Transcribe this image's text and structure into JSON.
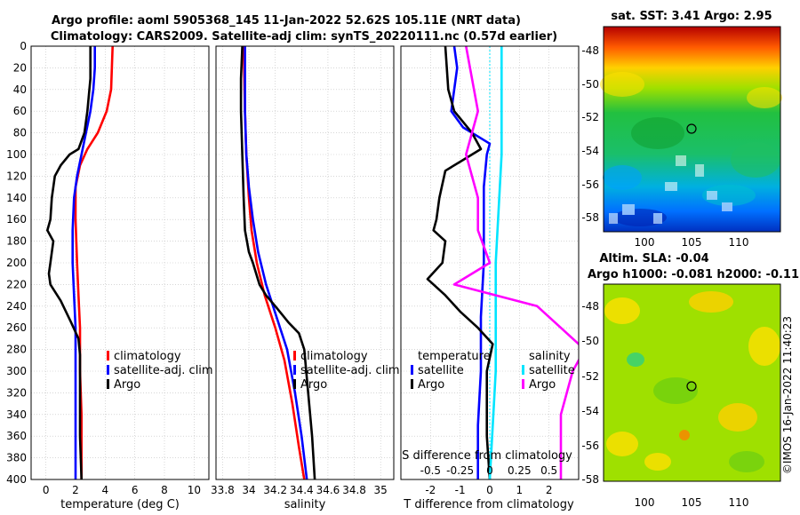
{
  "title_line1": "Argo profile: aoml 5905368_145 11-Jan-2022 52.62S 105.11E (NRT data)",
  "title_line2": "Climatology: CARS2009. Satellite-adj clim: synTS_20220111.nc (0.57d earlier)",
  "watermark": "©IMOS 16-Jan-2022 11:40:23",
  "colors": {
    "climatology": "#ff0000",
    "satellite": "#0000ff",
    "argo": "#000000",
    "sal_satellite": "#00e5ff",
    "sal_argo": "#ff00ff",
    "grid": "#bfbfbf"
  },
  "chart_data": [
    {
      "type": "line",
      "id": "temperature",
      "xlabel": "temperature (deg C)",
      "xlim": [
        -1,
        11
      ],
      "ylim": [
        400,
        0
      ],
      "xticks": [
        0,
        2,
        4,
        6,
        8,
        10
      ],
      "yticks": [
        0,
        20,
        40,
        60,
        80,
        100,
        120,
        140,
        160,
        180,
        200,
        220,
        240,
        260,
        280,
        300,
        320,
        340,
        360,
        380,
        400
      ],
      "legend": [
        "climatology",
        "satellite-adj. clim",
        "Argo"
      ],
      "series": [
        {
          "name": "climatology",
          "color": "#ff0000",
          "points": [
            [
              4.5,
              0
            ],
            [
              4.4,
              40
            ],
            [
              4.1,
              60
            ],
            [
              3.5,
              80
            ],
            [
              2.8,
              95
            ],
            [
              2.3,
              110
            ],
            [
              2.0,
              130
            ],
            [
              2.0,
              160
            ],
            [
              2.1,
              200
            ],
            [
              2.2,
              230
            ],
            [
              2.3,
              260
            ],
            [
              2.3,
              300
            ],
            [
              2.4,
              340
            ],
            [
              2.4,
              400
            ]
          ]
        },
        {
          "name": "satellite-adj. clim",
          "color": "#0000ff",
          "points": [
            [
              3.3,
              0
            ],
            [
              3.3,
              20
            ],
            [
              3.2,
              40
            ],
            [
              3.0,
              60
            ],
            [
              2.7,
              80
            ],
            [
              2.4,
              100
            ],
            [
              2.1,
              120
            ],
            [
              1.9,
              140
            ],
            [
              1.8,
              170
            ],
            [
              1.8,
              200
            ],
            [
              1.9,
              230
            ],
            [
              2.0,
              260
            ],
            [
              2.0,
              300
            ],
            [
              2.0,
              340
            ],
            [
              2.0,
              400
            ]
          ]
        },
        {
          "name": "Argo",
          "color": "#000000",
          "points": [
            [
              3.0,
              0
            ],
            [
              3.0,
              30
            ],
            [
              2.8,
              60
            ],
            [
              2.6,
              80
            ],
            [
              2.2,
              95
            ],
            [
              1.6,
              100
            ],
            [
              1.0,
              110
            ],
            [
              0.6,
              120
            ],
            [
              0.4,
              140
            ],
            [
              0.3,
              160
            ],
            [
              0.1,
              170
            ],
            [
              0.5,
              180
            ],
            [
              0.3,
              200
            ],
            [
              0.2,
              210
            ],
            [
              0.3,
              220
            ],
            [
              1.0,
              235
            ],
            [
              1.7,
              255
            ],
            [
              2.2,
              270
            ],
            [
              2.3,
              285
            ],
            [
              2.3,
              320
            ],
            [
              2.3,
              360
            ],
            [
              2.4,
              400
            ]
          ]
        }
      ]
    },
    {
      "type": "line",
      "id": "salinity",
      "xlabel": "salinity",
      "xlim": [
        33.75,
        35.1
      ],
      "ylim": [
        400,
        0
      ],
      "xticks": [
        "33.8",
        "34",
        "34.2",
        "34.4",
        "34.6",
        "34.8",
        "35"
      ],
      "legend": [
        "climatology",
        "satellite-adj. clim",
        "Argo"
      ],
      "series": [
        {
          "name": "climatology",
          "color": "#ff0000",
          "points": [
            [
              33.96,
              0
            ],
            [
              33.97,
              60
            ],
            [
              33.98,
              100
            ],
            [
              34.0,
              140
            ],
            [
              34.02,
              170
            ],
            [
              34.06,
              200
            ],
            [
              34.12,
              230
            ],
            [
              34.2,
              260
            ],
            [
              34.27,
              290
            ],
            [
              34.33,
              330
            ],
            [
              34.38,
              370
            ],
            [
              34.42,
              400
            ]
          ]
        },
        {
          "name": "satellite-adj. clim",
          "color": "#0000ff",
          "points": [
            [
              33.97,
              0
            ],
            [
              33.97,
              60
            ],
            [
              33.98,
              100
            ],
            [
              34.0,
              130
            ],
            [
              34.03,
              160
            ],
            [
              34.07,
              190
            ],
            [
              34.13,
              220
            ],
            [
              34.21,
              250
            ],
            [
              34.29,
              280
            ],
            [
              34.35,
              320
            ],
            [
              34.4,
              360
            ],
            [
              34.44,
              400
            ]
          ]
        },
        {
          "name": "Argo",
          "color": "#000000",
          "points": [
            [
              33.95,
              0
            ],
            [
              33.94,
              30
            ],
            [
              33.94,
              60
            ],
            [
              33.95,
              100
            ],
            [
              33.96,
              140
            ],
            [
              33.97,
              170
            ],
            [
              34.0,
              190
            ],
            [
              34.03,
              200
            ],
            [
              34.08,
              220
            ],
            [
              34.13,
              230
            ],
            [
              34.2,
              240
            ],
            [
              34.3,
              255
            ],
            [
              34.38,
              265
            ],
            [
              34.42,
              280
            ],
            [
              34.45,
              320
            ],
            [
              34.48,
              360
            ],
            [
              34.5,
              400
            ]
          ]
        }
      ]
    },
    {
      "type": "line",
      "id": "difference",
      "xlabel": "T difference from climatology",
      "xlabel_top": "S difference from climatology",
      "xlim": [
        -3,
        3
      ],
      "xticks": [
        "-2",
        "-1",
        "0",
        "1",
        "2"
      ],
      "sal_xticks": [
        "-0.5",
        "-0.25",
        "0",
        "0.25",
        "0.5"
      ],
      "legend_left_title": "temperature",
      "legend_left": [
        "satellite",
        "Argo"
      ],
      "legend_right_title": "salinity",
      "legend_right": [
        "satellite",
        "Argo"
      ],
      "series": [
        {
          "name": "temperature satellite",
          "color": "#0000ff",
          "points": [
            [
              -1.2,
              0
            ],
            [
              -1.1,
              20
            ],
            [
              -1.2,
              40
            ],
            [
              -1.3,
              60
            ],
            [
              -0.9,
              75
            ],
            [
              -0.3,
              85
            ],
            [
              0.0,
              90
            ],
            [
              -0.1,
              100
            ],
            [
              -0.2,
              130
            ],
            [
              -0.2,
              200
            ],
            [
              -0.3,
              250
            ],
            [
              -0.3,
              300
            ],
            [
              -0.4,
              350
            ],
            [
              -0.4,
              400
            ]
          ]
        },
        {
          "name": "temperature Argo",
          "color": "#000000",
          "points": [
            [
              -1.5,
              0
            ],
            [
              -1.4,
              40
            ],
            [
              -1.2,
              60
            ],
            [
              -0.6,
              80
            ],
            [
              -0.3,
              95
            ],
            [
              -0.9,
              105
            ],
            [
              -1.5,
              115
            ],
            [
              -1.7,
              140
            ],
            [
              -1.8,
              160
            ],
            [
              -1.9,
              170
            ],
            [
              -1.5,
              180
            ],
            [
              -1.6,
              200
            ],
            [
              -2.1,
              215
            ],
            [
              -1.5,
              230
            ],
            [
              -1.0,
              245
            ],
            [
              -0.4,
              260
            ],
            [
              0.1,
              275
            ],
            [
              -0.1,
              300
            ],
            [
              -0.1,
              360
            ],
            [
              0.0,
              400
            ]
          ]
        },
        {
          "name": "salinity satellite",
          "color": "#00e5ff",
          "points": [
            [
              0.1,
              0
            ],
            [
              0.1,
              100
            ],
            [
              0.05,
              200
            ],
            [
              0.05,
              300
            ],
            [
              0.0,
              400
            ]
          ]
        },
        {
          "name": "salinity Argo",
          "color": "#ff00ff",
          "points": [
            [
              -0.2,
              0
            ],
            [
              -0.1,
              60
            ],
            [
              -0.2,
              100
            ],
            [
              -0.1,
              140
            ],
            [
              -0.1,
              170
            ],
            [
              0.0,
              200
            ],
            [
              -0.3,
              220
            ],
            [
              0.4,
              240
            ],
            [
              0.6,
              260
            ],
            [
              0.8,
              280
            ],
            [
              0.7,
              300
            ],
            [
              0.6,
              340
            ],
            [
              0.6,
              400
            ]
          ]
        }
      ]
    },
    {
      "type": "heatmap",
      "id": "sst_map",
      "title": "sat. SST: 3.41 Argo: 2.95",
      "xticks": [
        "100",
        "105",
        "110"
      ],
      "yticks": [
        "-48",
        "-50",
        "-52",
        "-54",
        "-56",
        "-58"
      ],
      "marker": {
        "lon": 105.11,
        "lat": -52.62
      }
    },
    {
      "type": "heatmap",
      "id": "sla_map",
      "title_line1": "Altim. SLA: -0.04",
      "title_line2": "Argo h1000: -0.081 h2000: -0.11",
      "xticks": [
        "100",
        "105",
        "110"
      ],
      "yticks": [
        "-48",
        "-50",
        "-52",
        "-54",
        "-56",
        "-58"
      ],
      "marker": {
        "lon": 105.11,
        "lat": -52.62
      }
    }
  ]
}
